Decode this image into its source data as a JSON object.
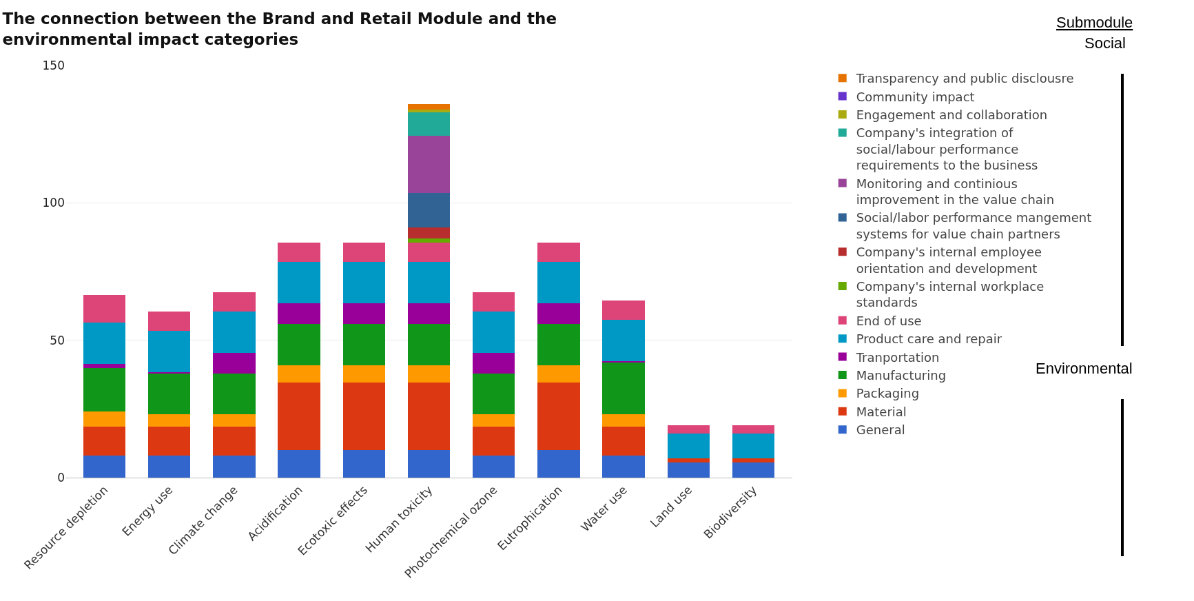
{
  "chart_data": {
    "type": "bar",
    "stacked": true,
    "title": "The connection between the Brand and Retail Module and the environmental impact categories",
    "categories": [
      "Resource depletion",
      "Energy use",
      "Climate change",
      "Acidification",
      "Ecotoxic effects",
      "Human toxicity",
      "Photochemical ozone",
      "Eutrophication",
      "Water use",
      "Land use",
      "Biodiversity"
    ],
    "series": [
      {
        "name": "General",
        "color": "#3366cc",
        "values": [
          8,
          8,
          8,
          10,
          10,
          10,
          8,
          10,
          8,
          5.5,
          5.5
        ]
      },
      {
        "name": "Material",
        "color": "#dc3912",
        "values": [
          10.5,
          10.5,
          10.5,
          24.5,
          24.5,
          24.5,
          10.5,
          24.5,
          10.5,
          1.5,
          1.5
        ]
      },
      {
        "name": "Packaging",
        "color": "#ff9900",
        "values": [
          5.5,
          4.5,
          4.5,
          6.5,
          6.5,
          6.5,
          4.5,
          6.5,
          4.5,
          null,
          null
        ]
      },
      {
        "name": "Manufacturing",
        "color": "#109618",
        "values": [
          16,
          15,
          15,
          15,
          15,
          15,
          15,
          15,
          19,
          null,
          null
        ]
      },
      {
        "name": "Tranportation",
        "color": "#990099",
        "values": [
          1.5,
          0.5,
          7.5,
          7.5,
          7.5,
          7.5,
          7.5,
          7.5,
          0.5,
          null,
          null
        ]
      },
      {
        "name": "Product care and repair",
        "color": "#0099c6",
        "values": [
          15,
          15,
          15,
          15,
          15,
          15,
          15,
          15,
          15,
          9,
          9
        ]
      },
      {
        "name": "End of use",
        "color": "#dd4477",
        "values": [
          10,
          7,
          7,
          7,
          7,
          7,
          7,
          7,
          7,
          3,
          3
        ]
      },
      {
        "name": "Company's internal workplace standards",
        "color": "#66aa00",
        "values": [
          null,
          null,
          null,
          null,
          null,
          1.5,
          null,
          null,
          null,
          null,
          null
        ]
      },
      {
        "name": "Company's internal employee orientation and development",
        "color": "#b82e2e",
        "values": [
          null,
          null,
          null,
          null,
          null,
          4,
          null,
          null,
          null,
          null,
          null
        ]
      },
      {
        "name": "Social/labor performance mangement systems for value chain partners",
        "color": "#316395",
        "values": [
          null,
          null,
          null,
          null,
          null,
          12.5,
          null,
          null,
          null,
          null,
          null
        ]
      },
      {
        "name": "Monitoring and continious improvement in the value chain",
        "color": "#994499",
        "values": [
          null,
          null,
          null,
          null,
          null,
          21,
          null,
          null,
          null,
          null,
          null
        ]
      },
      {
        "name": "Company's integration of social/labour performance requirements to the business",
        "color": "#22aa99",
        "values": [
          null,
          null,
          null,
          null,
          null,
          8.5,
          null,
          null,
          null,
          null,
          null
        ]
      },
      {
        "name": "Engagement and collaboration",
        "color": "#aaaa11",
        "values": [
          null,
          null,
          null,
          null,
          null,
          1,
          null,
          null,
          null,
          null,
          null
        ]
      },
      {
        "name": "Community impact",
        "color": "#6633cc",
        "values": [
          null,
          null,
          null,
          null,
          null,
          null,
          null,
          null,
          null,
          null,
          null
        ]
      },
      {
        "name": "Transparency and public disclousre",
        "color": "#e67300",
        "values": [
          null,
          null,
          null,
          null,
          null,
          2,
          null,
          null,
          null,
          null,
          null
        ]
      }
    ],
    "ylim": [
      0,
      150
    ],
    "yticks": [
      0,
      50,
      100,
      150
    ],
    "grid": "y",
    "legend": "right",
    "annotations": [
      "Submodule",
      "Social",
      "Environmental"
    ]
  }
}
